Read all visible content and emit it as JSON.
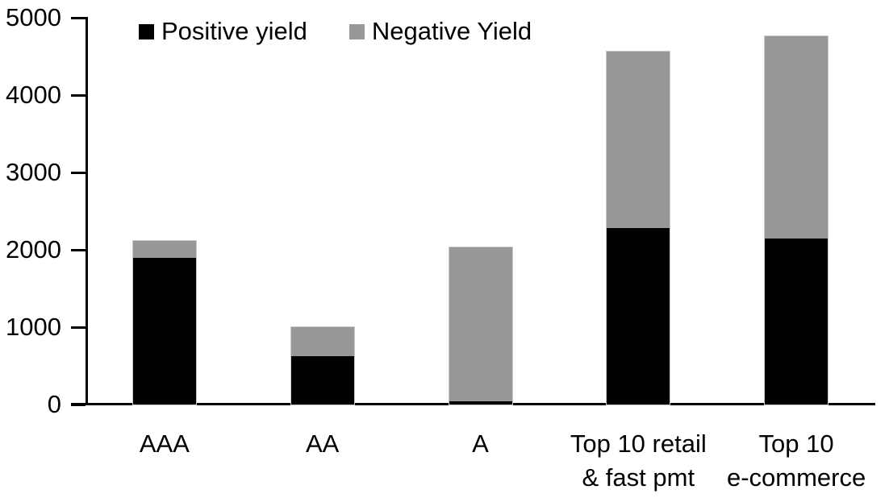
{
  "chart_data": {
    "type": "bar",
    "stacked": true,
    "title": "",
    "categories": [
      "AAA",
      "AA",
      "A",
      "Top 10 retail\n& fast pmt",
      "Top 10\ne-commerce"
    ],
    "series": [
      {
        "name": "Positive yield",
        "color": "#000000",
        "values": [
          1900,
          620,
          40,
          2280,
          2150
        ]
      },
      {
        "name": "Negative Yield",
        "color": "#989898",
        "values": [
          210,
          380,
          1990,
          2280,
          2610
        ]
      }
    ],
    "ylim": [
      0,
      5000
    ],
    "yticks": [
      0,
      1000,
      2000,
      3000,
      4000,
      5000
    ],
    "xlabel": "",
    "ylabel": "",
    "grid": false,
    "legend_position": "top",
    "axis_color": "#000000",
    "bar_outline_color": "#c9c9c9",
    "background_color": "#ffffff"
  }
}
